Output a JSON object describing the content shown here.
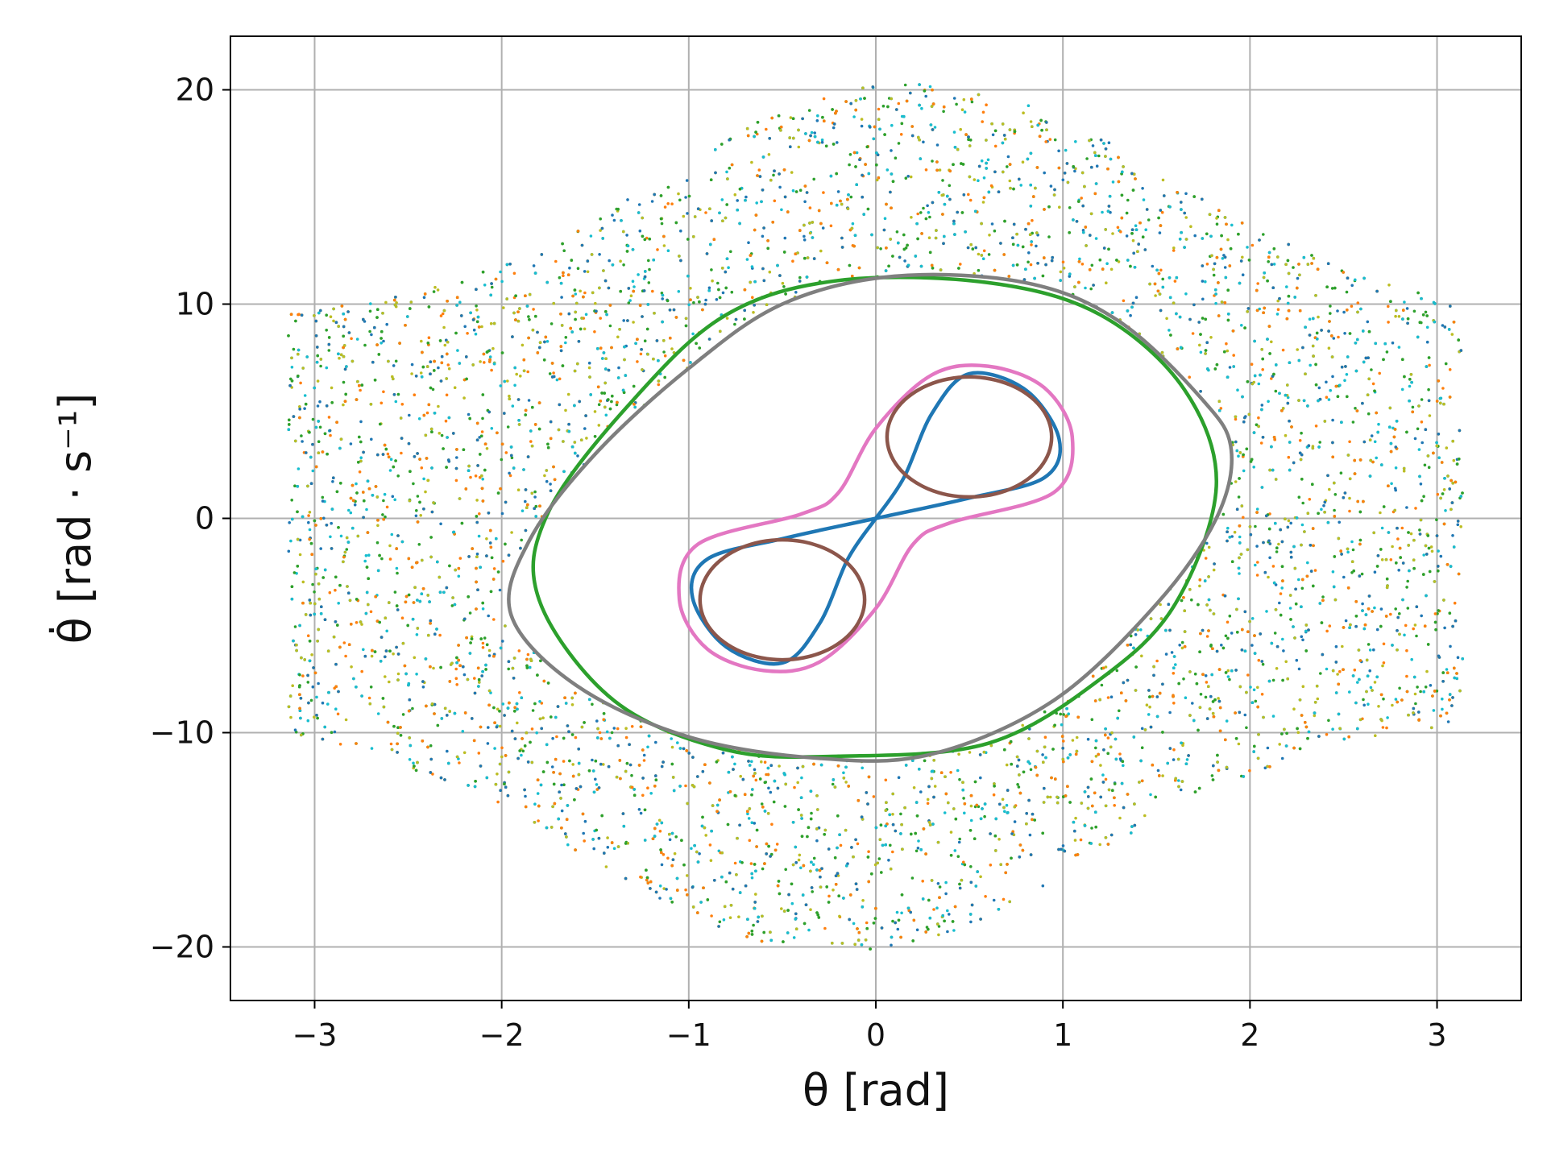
{
  "chart_data": {
    "type": "scatter",
    "title": "",
    "xlabel": "θ [rad]",
    "ylabel": "θ̇ [rad · s⁻¹]",
    "xlim": [
      -3.45,
      3.45
    ],
    "ylim": [
      -22.5,
      22.5
    ],
    "x_ticks": [
      -3,
      -2,
      -1,
      0,
      1,
      2,
      3
    ],
    "x_tick_labels": [
      "−3",
      "−2",
      "−1",
      "0",
      "1",
      "2",
      "3"
    ],
    "y_ticks": [
      -20,
      -10,
      0,
      10,
      20
    ],
    "y_tick_labels": [
      "−20",
      "−10",
      "0",
      "10",
      "20"
    ],
    "grid": true,
    "legend": "none",
    "colors": {
      "grid": "#b0b0b0",
      "chaos": [
        "#17becf",
        "#ff7f0e",
        "#bcbd22",
        "#1f77b4",
        "#2ca02c"
      ],
      "figure_eight": "#1f77b4",
      "inner_lobes": "#8c564b",
      "pink_envelope": "#e377c2",
      "outer_green": "#2ca02c",
      "outer_gray": "#7f7f7f"
    },
    "series": [
      {
        "kind": "chaotic_sea",
        "x_range": [
          -3.14,
          3.14
        ],
        "y_range": [
          -20.5,
          20.5
        ],
        "style": "dots"
      },
      {
        "kind": "figure_eight",
        "style": "curve",
        "points": [
          [
            0,
            0
          ],
          [
            0.15,
            1.9
          ],
          [
            0.3,
            4.9
          ],
          [
            0.5,
            6.75
          ],
          [
            0.8,
            6.0
          ],
          [
            0.98,
            3.7
          ],
          [
            0.9,
            1.9
          ],
          [
            0.5,
            0.95
          ],
          [
            0,
            0
          ],
          [
            -0.5,
            -0.95
          ],
          [
            -0.9,
            -1.9
          ],
          [
            -0.98,
            -3.7
          ],
          [
            -0.8,
            -6.0
          ],
          [
            -0.5,
            -6.75
          ],
          [
            -0.3,
            -4.9
          ],
          [
            -0.15,
            -1.9
          ],
          [
            0,
            0
          ]
        ]
      },
      {
        "kind": "lobe_upper",
        "style": "curve",
        "center": [
          0.5,
          3.8
        ],
        "semi_axes": [
          0.44,
          2.8
        ]
      },
      {
        "kind": "lobe_lower",
        "style": "curve",
        "center": [
          -0.5,
          -3.8
        ],
        "semi_axes": [
          0.44,
          2.8
        ]
      },
      {
        "kind": "pink_envelope",
        "style": "curve",
        "points": [
          [
            -0.2,
            1.2
          ],
          [
            0,
            4.2
          ],
          [
            0.3,
            6.7
          ],
          [
            0.6,
            7.1
          ],
          [
            0.9,
            6.1
          ],
          [
            1.05,
            3.8
          ],
          [
            0.95,
            1.2
          ],
          [
            0.4,
            -0.2
          ],
          [
            0.2,
            -1.2
          ],
          [
            0,
            -4.2
          ],
          [
            -0.3,
            -6.7
          ],
          [
            -0.6,
            -7.1
          ],
          [
            -0.9,
            -6.1
          ],
          [
            -1.05,
            -3.8
          ],
          [
            -0.95,
            -1.2
          ],
          [
            -0.4,
            0.2
          ]
        ]
      },
      {
        "kind": "outer_green",
        "style": "curve",
        "points": [
          [
            -0.2,
            11.1
          ],
          [
            0.6,
            11.0
          ],
          [
            1.2,
            9.5
          ],
          [
            1.65,
            6.0
          ],
          [
            1.82,
            1.5
          ],
          [
            1.6,
            -4.0
          ],
          [
            1.2,
            -7.5
          ],
          [
            0.6,
            -10.5
          ],
          [
            -0.2,
            -11.1
          ],
          [
            -0.8,
            -10.8
          ],
          [
            -1.4,
            -8.5
          ],
          [
            -1.8,
            -3.8
          ],
          [
            -1.75,
            0.3
          ],
          [
            -1.3,
            5.5
          ],
          [
            -0.8,
            9.5
          ]
        ]
      },
      {
        "kind": "outer_gray",
        "style": "curve",
        "points": [
          [
            0.1,
            11.3
          ],
          [
            0.8,
            11.0
          ],
          [
            1.3,
            9.2
          ],
          [
            1.75,
            5.5
          ],
          [
            1.9,
            3.2
          ],
          [
            1.82,
            0
          ],
          [
            1.5,
            -4.0
          ],
          [
            0.95,
            -8.5
          ],
          [
            0.3,
            -11.0
          ],
          [
            -0.3,
            -11.2
          ],
          [
            -1.0,
            -10.2
          ],
          [
            -1.6,
            -7.8
          ],
          [
            -1.95,
            -4.5
          ],
          [
            -1.85,
            -1.0
          ],
          [
            -1.5,
            3.0
          ],
          [
            -1.0,
            7.0
          ],
          [
            -0.5,
            10.0
          ]
        ]
      }
    ]
  }
}
